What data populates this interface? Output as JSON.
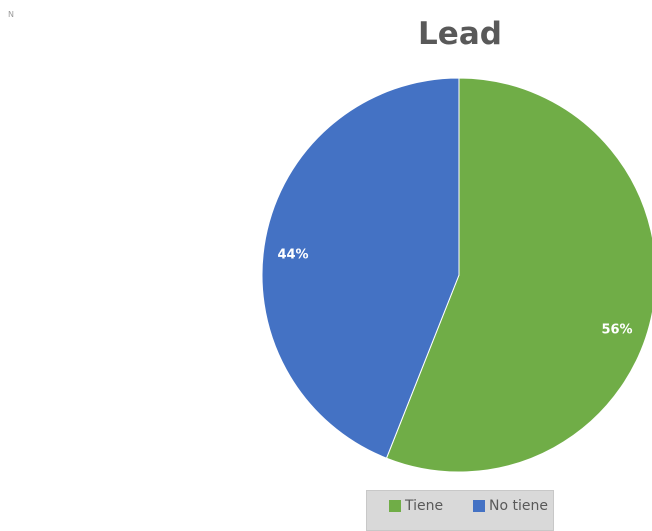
{
  "corner_mark": "N",
  "chart_data": {
    "type": "pie",
    "title": "Lead",
    "slices": [
      {
        "name": "Tiene",
        "value": 56,
        "label": "56%",
        "color": "#70ad47"
      },
      {
        "name": "No tiene",
        "value": 44,
        "label": "44%",
        "color": "#4472c4"
      }
    ],
    "legend_position": "bottom"
  }
}
